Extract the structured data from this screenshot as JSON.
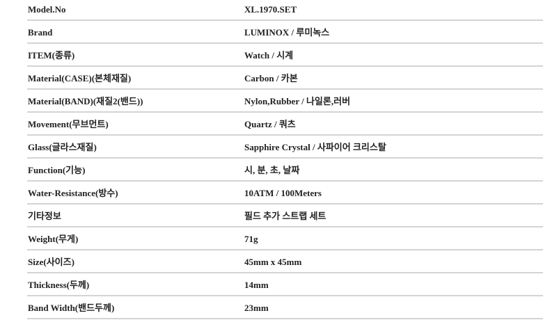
{
  "specs": [
    {
      "label": "Model.No",
      "value": "XL.1970.SET"
    },
    {
      "label": "Brand",
      "value": "LUMINOX / 루미녹스"
    },
    {
      "label": "ITEM(종류)",
      "value": "Watch / 시계"
    },
    {
      "label": "Material(CASE)(본체재질)",
      "value": "Carbon / 카본"
    },
    {
      "label": "Material(BAND)(재질2(밴드))",
      "value": "Nylon,Rubber / 나일론,러버"
    },
    {
      "label": "Movement(무브먼트)",
      "value": "Quartz / 쿼츠"
    },
    {
      "label": "Glass(글라스재질)",
      "value": "Sapphire Crystal / 사파이어 크리스탈"
    },
    {
      "label": "Function(기능)",
      "value": "시, 분, 초, 날짜"
    },
    {
      "label": "Water-Resistance(방수)",
      "value": "10ATM / 100Meters"
    },
    {
      "label": "기타정보",
      "value": "필드 추가 스트랩 세트"
    },
    {
      "label": "Weight(무게)",
      "value": "71g"
    },
    {
      "label": "Size(사이즈)",
      "value": "45mm x 45mm"
    },
    {
      "label": "Thickness(두께)",
      "value": "14mm"
    },
    {
      "label": "Band Width(밴드두께)",
      "value": "23mm"
    }
  ]
}
